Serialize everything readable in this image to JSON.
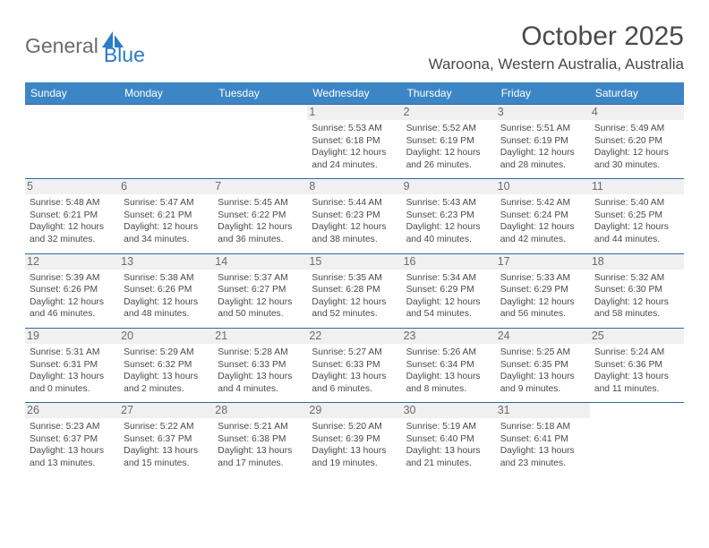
{
  "logo": {
    "text1": "General",
    "text2": "Blue",
    "icon_color": "#2a7cc4"
  },
  "title": "October 2025",
  "location": "Waroona, Western Australia, Australia",
  "header_bg": "#3d86c6",
  "header_fg": "#ffffff",
  "border_color": "#2f6aa3",
  "daynum_bg": "#f0f0f0",
  "text_color": "#4a4a4a",
  "days_of_week": [
    "Sunday",
    "Monday",
    "Tuesday",
    "Wednesday",
    "Thursday",
    "Friday",
    "Saturday"
  ],
  "weeks": [
    [
      {
        "n": "",
        "sr": "",
        "ss": "",
        "dl": ""
      },
      {
        "n": "",
        "sr": "",
        "ss": "",
        "dl": ""
      },
      {
        "n": "",
        "sr": "",
        "ss": "",
        "dl": ""
      },
      {
        "n": "1",
        "sr": "5:53 AM",
        "ss": "6:18 PM",
        "dl": "12 hours and 24 minutes."
      },
      {
        "n": "2",
        "sr": "5:52 AM",
        "ss": "6:19 PM",
        "dl": "12 hours and 26 minutes."
      },
      {
        "n": "3",
        "sr": "5:51 AM",
        "ss": "6:19 PM",
        "dl": "12 hours and 28 minutes."
      },
      {
        "n": "4",
        "sr": "5:49 AM",
        "ss": "6:20 PM",
        "dl": "12 hours and 30 minutes."
      }
    ],
    [
      {
        "n": "5",
        "sr": "5:48 AM",
        "ss": "6:21 PM",
        "dl": "12 hours and 32 minutes."
      },
      {
        "n": "6",
        "sr": "5:47 AM",
        "ss": "6:21 PM",
        "dl": "12 hours and 34 minutes."
      },
      {
        "n": "7",
        "sr": "5:45 AM",
        "ss": "6:22 PM",
        "dl": "12 hours and 36 minutes."
      },
      {
        "n": "8",
        "sr": "5:44 AM",
        "ss": "6:23 PM",
        "dl": "12 hours and 38 minutes."
      },
      {
        "n": "9",
        "sr": "5:43 AM",
        "ss": "6:23 PM",
        "dl": "12 hours and 40 minutes."
      },
      {
        "n": "10",
        "sr": "5:42 AM",
        "ss": "6:24 PM",
        "dl": "12 hours and 42 minutes."
      },
      {
        "n": "11",
        "sr": "5:40 AM",
        "ss": "6:25 PM",
        "dl": "12 hours and 44 minutes."
      }
    ],
    [
      {
        "n": "12",
        "sr": "5:39 AM",
        "ss": "6:26 PM",
        "dl": "12 hours and 46 minutes."
      },
      {
        "n": "13",
        "sr": "5:38 AM",
        "ss": "6:26 PM",
        "dl": "12 hours and 48 minutes."
      },
      {
        "n": "14",
        "sr": "5:37 AM",
        "ss": "6:27 PM",
        "dl": "12 hours and 50 minutes."
      },
      {
        "n": "15",
        "sr": "5:35 AM",
        "ss": "6:28 PM",
        "dl": "12 hours and 52 minutes."
      },
      {
        "n": "16",
        "sr": "5:34 AM",
        "ss": "6:29 PM",
        "dl": "12 hours and 54 minutes."
      },
      {
        "n": "17",
        "sr": "5:33 AM",
        "ss": "6:29 PM",
        "dl": "12 hours and 56 minutes."
      },
      {
        "n": "18",
        "sr": "5:32 AM",
        "ss": "6:30 PM",
        "dl": "12 hours and 58 minutes."
      }
    ],
    [
      {
        "n": "19",
        "sr": "5:31 AM",
        "ss": "6:31 PM",
        "dl": "13 hours and 0 minutes."
      },
      {
        "n": "20",
        "sr": "5:29 AM",
        "ss": "6:32 PM",
        "dl": "13 hours and 2 minutes."
      },
      {
        "n": "21",
        "sr": "5:28 AM",
        "ss": "6:33 PM",
        "dl": "13 hours and 4 minutes."
      },
      {
        "n": "22",
        "sr": "5:27 AM",
        "ss": "6:33 PM",
        "dl": "13 hours and 6 minutes."
      },
      {
        "n": "23",
        "sr": "5:26 AM",
        "ss": "6:34 PM",
        "dl": "13 hours and 8 minutes."
      },
      {
        "n": "24",
        "sr": "5:25 AM",
        "ss": "6:35 PM",
        "dl": "13 hours and 9 minutes."
      },
      {
        "n": "25",
        "sr": "5:24 AM",
        "ss": "6:36 PM",
        "dl": "13 hours and 11 minutes."
      }
    ],
    [
      {
        "n": "26",
        "sr": "5:23 AM",
        "ss": "6:37 PM",
        "dl": "13 hours and 13 minutes."
      },
      {
        "n": "27",
        "sr": "5:22 AM",
        "ss": "6:37 PM",
        "dl": "13 hours and 15 minutes."
      },
      {
        "n": "28",
        "sr": "5:21 AM",
        "ss": "6:38 PM",
        "dl": "13 hours and 17 minutes."
      },
      {
        "n": "29",
        "sr": "5:20 AM",
        "ss": "6:39 PM",
        "dl": "13 hours and 19 minutes."
      },
      {
        "n": "30",
        "sr": "5:19 AM",
        "ss": "6:40 PM",
        "dl": "13 hours and 21 minutes."
      },
      {
        "n": "31",
        "sr": "5:18 AM",
        "ss": "6:41 PM",
        "dl": "13 hours and 23 minutes."
      },
      {
        "n": "",
        "sr": "",
        "ss": "",
        "dl": ""
      }
    ]
  ],
  "labels": {
    "sunrise": "Sunrise: ",
    "sunset": "Sunset: ",
    "daylight": "Daylight: "
  }
}
